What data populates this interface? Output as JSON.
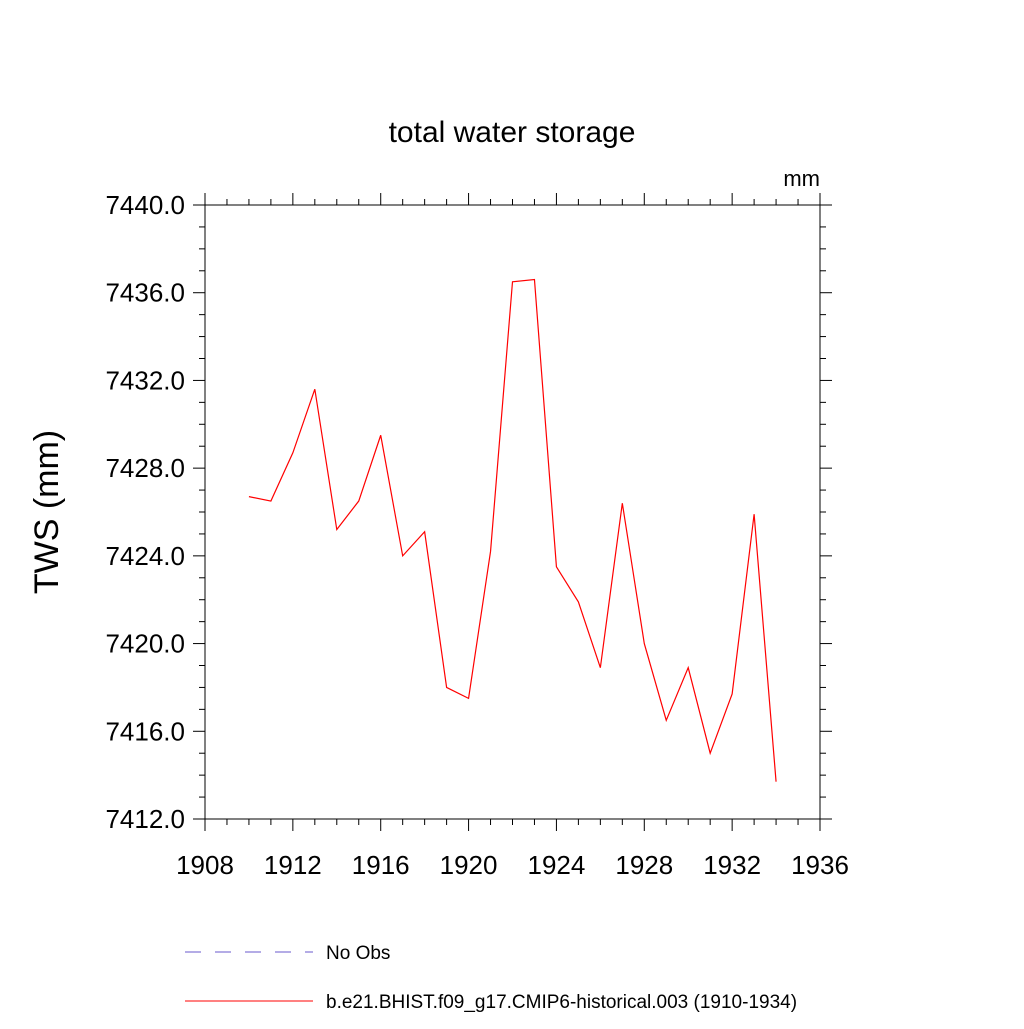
{
  "chart_data": {
    "type": "line",
    "title": "total water storage",
    "units": "mm",
    "ylabel": "TWS  (mm)",
    "xlabel": "",
    "xlim": [
      1908,
      1936
    ],
    "ylim": [
      7412.0,
      7440.0
    ],
    "x_ticks": [
      1908,
      1912,
      1916,
      1920,
      1924,
      1928,
      1932,
      1936
    ],
    "x_tick_labels": [
      "1908",
      "1912",
      "1916",
      "1920",
      "1924",
      "1928",
      "1932",
      "1936"
    ],
    "y_ticks": [
      7412.0,
      7416.0,
      7420.0,
      7424.0,
      7428.0,
      7432.0,
      7436.0,
      7440.0
    ],
    "y_tick_labels": [
      "7412.0",
      "7416.0",
      "7420.0",
      "7424.0",
      "7428.0",
      "7432.0",
      "7436.0",
      "7440.0"
    ],
    "grid": false,
    "legend_position": "bottom",
    "series": [
      {
        "name": "No Obs",
        "color": "#6a5acd",
        "dash": "dashed",
        "x": [],
        "y": []
      },
      {
        "name": "b.e21.BHIST.f09_g17.CMIP6-historical.003 (1910-1934)",
        "color": "#ff0000",
        "dash": "solid",
        "x": [
          1910,
          1911,
          1912,
          1913,
          1914,
          1915,
          1916,
          1917,
          1918,
          1919,
          1920,
          1921,
          1922,
          1923,
          1924,
          1925,
          1926,
          1927,
          1928,
          1929,
          1930,
          1931,
          1932,
          1933,
          1934
        ],
        "y": [
          7426.7,
          7426.5,
          7428.7,
          7431.6,
          7425.2,
          7426.5,
          7429.5,
          7424.0,
          7425.1,
          7418.0,
          7417.5,
          7424.2,
          7436.5,
          7436.6,
          7423.5,
          7421.9,
          7418.9,
          7426.4,
          7420.0,
          7416.5,
          7418.9,
          7415.0,
          7417.7,
          7425.9,
          7413.7
        ]
      }
    ]
  }
}
